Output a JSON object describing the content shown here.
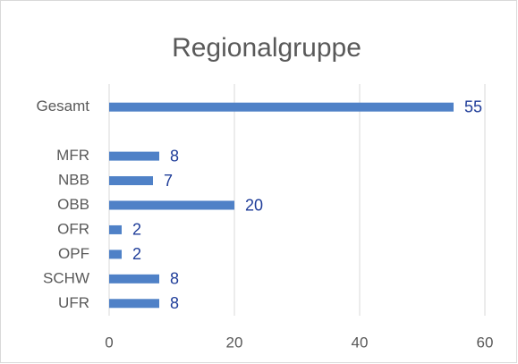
{
  "chart_data": {
    "type": "hbar",
    "title": "Regionalgruppe",
    "categories": [
      "Gesamt",
      null,
      "MFR",
      "NBB",
      "OBB",
      "OFR",
      "OPF",
      "SCHW",
      "UFR"
    ],
    "values": [
      55,
      null,
      8,
      7,
      20,
      2,
      2,
      8,
      8
    ],
    "color": "#4f81c7",
    "label_color": "#1f3d99",
    "xlim": [
      0,
      60
    ],
    "xticks": [
      0,
      20,
      40,
      60
    ],
    "grid": true
  }
}
